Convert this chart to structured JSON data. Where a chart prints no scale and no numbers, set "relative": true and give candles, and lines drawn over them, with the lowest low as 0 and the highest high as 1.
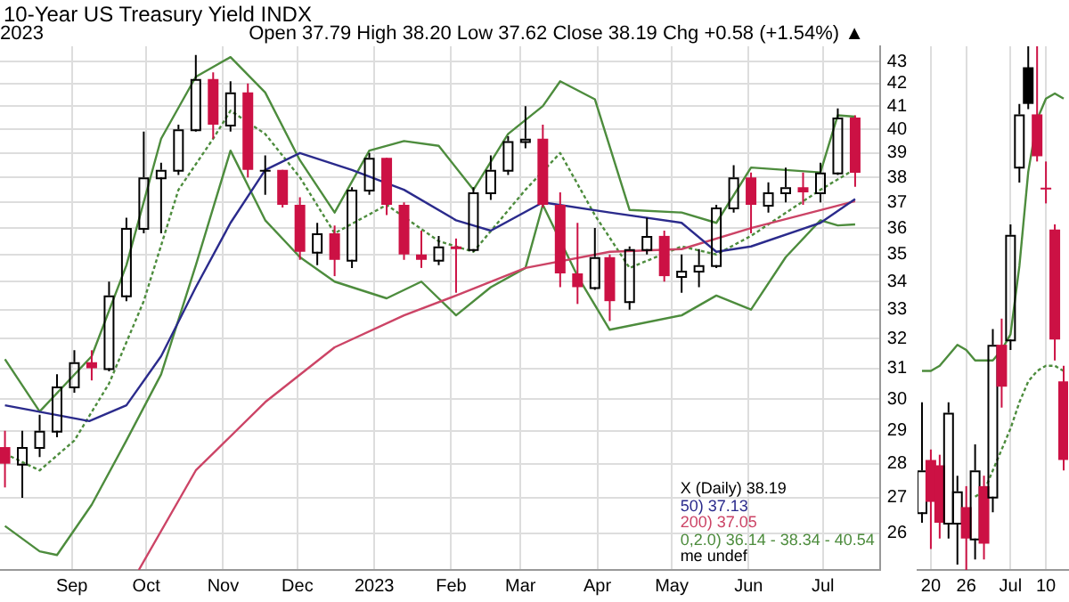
{
  "chart_data": [
    {
      "type": "candlestick",
      "title": "10-Year US Treasury Yield INDX",
      "annotations": [
        "2023",
        "Open 37.79  High 38.20  Low 37.62  Close 38.19  Chg +0.58 (+1.54%) ▲",
        "X (Daily) 38.19",
        "me undef"
      ],
      "log": true,
      "ylim": [
        25,
        43.7
      ],
      "yticks": [
        26,
        27,
        28,
        29,
        30,
        31,
        32,
        33,
        34,
        35,
        36,
        37,
        38,
        39,
        40,
        41,
        42,
        43
      ],
      "xlim": [
        "2022-08-03",
        "2023-07-24"
      ],
      "xticks": [
        {
          "value": "2022-09-01",
          "label": "Sep"
        },
        {
          "value": "2022-10-01",
          "label": "Oct"
        },
        {
          "value": "2022-11-01",
          "label": "Nov"
        },
        {
          "value": "2022-12-01",
          "label": "Dec"
        },
        {
          "value": "2023-01-01",
          "label": "2023"
        },
        {
          "value": "2023-02-01",
          "label": "Feb"
        },
        {
          "value": "2023-03-01",
          "label": "Mar"
        },
        {
          "value": "2023-04-01",
          "label": "Apr"
        },
        {
          "value": "2023-05-01",
          "label": "May"
        },
        {
          "value": "2023-06-01",
          "label": "Jun"
        },
        {
          "value": "2023-07-01",
          "label": "Jul"
        }
      ],
      "grid": true,
      "legend": "bottom right",
      "x": [
        "2022-08-05",
        "2022-08-12",
        "2022-08-19",
        "2022-08-26",
        "2022-09-02",
        "2022-09-09",
        "2022-09-16",
        "2022-09-23",
        "2022-09-30",
        "2022-10-07",
        "2022-10-14",
        "2022-10-21",
        "2022-10-28",
        "2022-11-04",
        "2022-11-11",
        "2022-11-18",
        "2022-11-25",
        "2022-12-02",
        "2022-12-09",
        "2022-12-16",
        "2022-12-23",
        "2022-12-30",
        "2023-01-06",
        "2023-01-13",
        "2023-01-20",
        "2023-01-27",
        "2023-02-03",
        "2023-02-10",
        "2023-02-17",
        "2023-02-24",
        "2023-03-03",
        "2023-03-10",
        "2023-03-17",
        "2023-03-24",
        "2023-03-31",
        "2023-04-06",
        "2023-04-14",
        "2023-04-21",
        "2023-04-28",
        "2023-05-05",
        "2023-05-12",
        "2023-05-19",
        "2023-05-26",
        "2023-06-02",
        "2023-06-09",
        "2023-06-16",
        "2023-06-23",
        "2023-06-30",
        "2023-07-07",
        "2023-07-14"
      ],
      "ohlc": [
        [
          28.5,
          29.0,
          27.3,
          28.0
        ],
        [
          28.0,
          29.0,
          27.0,
          28.5
        ],
        [
          28.5,
          29.5,
          28.2,
          29.0
        ],
        [
          29.0,
          30.8,
          28.8,
          30.4
        ],
        [
          30.4,
          31.6,
          30.2,
          31.2
        ],
        [
          31.2,
          31.6,
          30.6,
          31.0
        ],
        [
          31.0,
          34.0,
          30.9,
          33.5
        ],
        [
          33.5,
          36.4,
          33.3,
          36.0
        ],
        [
          36.0,
          39.9,
          35.8,
          38.0
        ],
        [
          38.0,
          38.6,
          35.8,
          38.3
        ],
        [
          38.3,
          40.2,
          38.1,
          40.0
        ],
        [
          40.0,
          43.3,
          39.9,
          42.2
        ],
        [
          42.2,
          42.5,
          39.6,
          40.2
        ],
        [
          40.2,
          42.1,
          39.9,
          41.6
        ],
        [
          41.6,
          42.0,
          38.0,
          38.3
        ],
        [
          38.3,
          38.9,
          37.3,
          38.3
        ],
        [
          38.3,
          38.3,
          36.8,
          36.9
        ],
        [
          36.9,
          37.2,
          34.8,
          35.1
        ],
        [
          35.1,
          36.2,
          34.6,
          35.8
        ],
        [
          35.8,
          36.1,
          34.2,
          34.8
        ],
        [
          34.8,
          37.6,
          34.5,
          37.5
        ],
        [
          37.5,
          39.0,
          37.3,
          38.8
        ],
        [
          38.8,
          38.8,
          36.5,
          36.9
        ],
        [
          36.9,
          37.0,
          34.8,
          35.0
        ],
        [
          35.0,
          35.9,
          34.5,
          34.8
        ],
        [
          34.8,
          35.7,
          34.6,
          35.3
        ],
        [
          35.3,
          35.6,
          33.6,
          35.2
        ],
        [
          35.2,
          37.6,
          35.1,
          37.4
        ],
        [
          37.4,
          38.9,
          37.1,
          38.3
        ],
        [
          38.3,
          39.7,
          38.1,
          39.5
        ],
        [
          39.5,
          41.0,
          39.2,
          39.6
        ],
        [
          39.6,
          40.2,
          36.8,
          36.9
        ],
        [
          36.9,
          37.4,
          33.8,
          34.3
        ],
        [
          34.3,
          36.2,
          33.2,
          33.8
        ],
        [
          33.8,
          36.0,
          33.7,
          34.9
        ],
        [
          34.9,
          35.0,
          32.6,
          33.3
        ],
        [
          33.3,
          35.3,
          33.0,
          35.2
        ],
        [
          35.2,
          36.4,
          35.0,
          35.7
        ],
        [
          35.7,
          35.9,
          34.0,
          34.2
        ],
        [
          34.2,
          35.0,
          33.6,
          34.4
        ],
        [
          34.4,
          35.2,
          33.8,
          34.6
        ],
        [
          34.6,
          36.9,
          34.5,
          36.8
        ],
        [
          36.8,
          38.5,
          36.6,
          38.0
        ],
        [
          38.0,
          38.2,
          35.8,
          36.9
        ],
        [
          36.9,
          37.8,
          36.6,
          37.4
        ],
        [
          37.4,
          38.4,
          37.0,
          37.6
        ],
        [
          37.6,
          38.2,
          36.9,
          37.4
        ],
        [
          37.4,
          38.6,
          37.0,
          38.2
        ],
        [
          38.2,
          40.9,
          38.1,
          40.5
        ],
        [
          40.5,
          40.6,
          37.62,
          38.19
        ]
      ],
      "colors": [
        "#cc1144",
        "#000000",
        "#000000",
        "#000000",
        "#000000",
        "#cc1144",
        "#000000",
        "#000000",
        "#000000",
        "#000000",
        "#000000",
        "#000000",
        "#cc1144",
        "#000000",
        "#cc1144",
        "#000000",
        "#cc1144",
        "#cc1144",
        "#000000",
        "#cc1144",
        "#000000",
        "#000000",
        "#cc1144",
        "#cc1144",
        "#cc1144",
        "#000000",
        "#cc1144",
        "#000000",
        "#000000",
        "#000000",
        "#000000",
        "#cc1144",
        "#cc1144",
        "#cc1144",
        "#000000",
        "#cc1144",
        "#000000",
        "#000000",
        "#cc1144",
        "#000000",
        "#000000",
        "#000000",
        "#000000",
        "#cc1144",
        "#000000",
        "#000000",
        "#cc1144",
        "#000000",
        "#000000",
        "#cc1144"
      ],
      "series": [
        {
          "type": "line",
          "name": "50) 37.13",
          "color": "#2b2b8c",
          "x": [
            "2022-08-05",
            "2022-09-08",
            "2022-09-23",
            "2022-10-07",
            "2022-10-21",
            "2022-11-04",
            "2022-11-18",
            "2022-12-02",
            "2022-12-23",
            "2023-01-13",
            "2023-02-03",
            "2023-02-17",
            "2023-03-10",
            "2023-04-06",
            "2023-05-05",
            "2023-05-19",
            "2023-06-02",
            "2023-06-30",
            "2023-07-14"
          ],
          "values": [
            29.8,
            29.3,
            29.8,
            31.4,
            33.8,
            36.2,
            38.3,
            39.0,
            38.3,
            37.5,
            36.3,
            35.9,
            37.0,
            36.6,
            36.2,
            35.1,
            35.3,
            36.2,
            37.13
          ]
        },
        {
          "type": "line",
          "name": "200) 37.05",
          "color": "#cc4466",
          "x": [
            "2022-09-28",
            "2022-10-21",
            "2022-11-18",
            "2022-12-16",
            "2023-01-13",
            "2023-02-03",
            "2023-03-03",
            "2023-04-06",
            "2023-05-05",
            "2023-06-02",
            "2023-07-14"
          ],
          "values": [
            25.0,
            27.8,
            29.9,
            31.7,
            32.8,
            33.5,
            34.5,
            35.1,
            35.2,
            36.0,
            37.05
          ]
        },
        {
          "type": "line",
          "name": "0,2.0) 36.14 - 38.34 - 40.54",
          "color": "#4d8c3d",
          "x": [
            "2022-08-05",
            "2022-08-19",
            "2022-09-09",
            "2022-09-23",
            "2022-10-07",
            "2022-10-21",
            "2022-11-04",
            "2022-11-18",
            "2022-12-02",
            "2022-12-16",
            "2022-12-30",
            "2023-01-13",
            "2023-01-27",
            "2023-02-10",
            "2023-02-24",
            "2023-03-10",
            "2023-03-17",
            "2023-03-31",
            "2023-04-14",
            "2023-05-05",
            "2023-05-19",
            "2023-06-02",
            "2023-06-30",
            "2023-07-07",
            "2023-07-14"
          ],
          "values": [
            31.3,
            29.6,
            31.4,
            34.6,
            39.6,
            42.3,
            43.2,
            41.6,
            38.7,
            36.6,
            39.1,
            39.5,
            39.3,
            37.5,
            39.8,
            41.0,
            42.1,
            41.3,
            36.7,
            36.6,
            36.2,
            38.4,
            38.2,
            40.6,
            40.54
          ]
        },
        {
          "type": "line",
          "color": "#4d8c3d",
          "x": [
            "2022-08-05",
            "2022-08-19",
            "2022-08-26",
            "2022-09-09",
            "2022-09-23",
            "2022-10-07",
            "2022-10-21",
            "2022-11-04",
            "2022-11-18",
            "2022-12-02",
            "2022-12-16",
            "2023-01-06",
            "2023-01-20",
            "2023-02-03",
            "2023-02-17",
            "2023-03-03",
            "2023-03-10",
            "2023-03-24",
            "2023-04-06",
            "2023-05-05",
            "2023-05-19",
            "2023-06-02",
            "2023-06-16",
            "2023-06-30",
            "2023-07-07",
            "2023-07-14"
          ],
          "values": [
            26.2,
            25.5,
            25.4,
            26.8,
            28.7,
            30.8,
            34.6,
            39.1,
            36.3,
            34.9,
            34.0,
            33.4,
            34.0,
            32.8,
            33.8,
            34.5,
            36.9,
            34.2,
            32.3,
            32.8,
            33.5,
            33.0,
            34.9,
            36.3,
            36.1,
            36.14
          ]
        },
        {
          "type": "line",
          "color": "#4d8c3d",
          "line_style": "dotted",
          "x": [
            "2022-08-05",
            "2022-08-19",
            "2022-09-02",
            "2022-09-16",
            "2022-09-30",
            "2022-10-14",
            "2022-10-28",
            "2022-11-04",
            "2022-11-18",
            "2022-12-02",
            "2022-12-16",
            "2023-01-06",
            "2023-01-27",
            "2023-02-10",
            "2023-03-03",
            "2023-03-17",
            "2023-03-31",
            "2023-04-14",
            "2023-05-05",
            "2023-05-19",
            "2023-06-02",
            "2023-06-30",
            "2023-07-14"
          ],
          "values": [
            28.3,
            27.8,
            28.7,
            30.5,
            33.3,
            37.5,
            39.6,
            40.8,
            39.8,
            38.0,
            35.8,
            36.9,
            35.5,
            35.1,
            37.5,
            39.0,
            36.5,
            34.5,
            35.3,
            35.0,
            35.7,
            37.5,
            38.34
          ]
        }
      ]
    },
    {
      "type": "candlestick",
      "relative": true,
      "grid": "x",
      "categories": [
        null,
        "20",
        null,
        null,
        null,
        "26",
        null,
        null,
        null,
        null,
        "Jul",
        null,
        null,
        null,
        "10",
        null,
        null
      ],
      "ohlc": [
        [
          0.11,
          0.32,
          0.09,
          0.19
        ],
        [
          0.21,
          0.23,
          0.04,
          0.13
        ],
        [
          0.2,
          0.22,
          0.06,
          0.09
        ],
        [
          0.09,
          0.32,
          0.06,
          0.3
        ],
        [
          0.09,
          0.18,
          0.01,
          0.15
        ],
        [
          0.12,
          0.16,
          0,
          0.06
        ],
        [
          0.06,
          0.24,
          0.02,
          0.19
        ],
        [
          0.16,
          0.18,
          0.02,
          0.05
        ],
        [
          0.14,
          0.46,
          0.11,
          0.43
        ],
        [
          0.43,
          0.48,
          0.31,
          0.35
        ],
        [
          0.44,
          0.66,
          0.42,
          0.64
        ],
        [
          0.77,
          0.89,
          0.74,
          0.87
        ],
        [
          0.96,
          1,
          0.88,
          0.89
        ],
        [
          0.87,
          1,
          0.78,
          0.79
        ],
        [
          0.73,
          0.78,
          0.7,
          0.73
        ],
        [
          0.65,
          0.66,
          0.4,
          0.44
        ],
        [
          0.36,
          0.39,
          0.19,
          0.21
        ]
      ],
      "colors": [
        "#000000",
        "#cc1144",
        "#cc1144",
        "#000000",
        "#000000",
        "#cc1144",
        "#000000",
        "#cc1144",
        "#000000",
        "#cc1144",
        "#000000",
        "#000000",
        "#000000",
        "#cc1144",
        "#cc1144",
        "#cc1144",
        "#cc1144"
      ],
      "series": [
        {
          "type": "line",
          "color": "#4d8c3d",
          "values": [
            0.38,
            0.38,
            0.39,
            0.41,
            0.43,
            0.42,
            0.4,
            0.4,
            0.4,
            0.42,
            0.45,
            0.58,
            0.76,
            0.86,
            0.9,
            0.91,
            0.9
          ]
        },
        {
          "type": "line",
          "color": "#4d8c3d",
          "line_style": "dotted",
          "values": [
            null,
            null,
            null,
            null,
            null,
            null,
            0.14,
            0.15,
            0.19,
            0.23,
            0.27,
            0.32,
            0.36,
            0.38,
            0.39,
            0.39,
            0.38
          ]
        }
      ]
    }
  ]
}
